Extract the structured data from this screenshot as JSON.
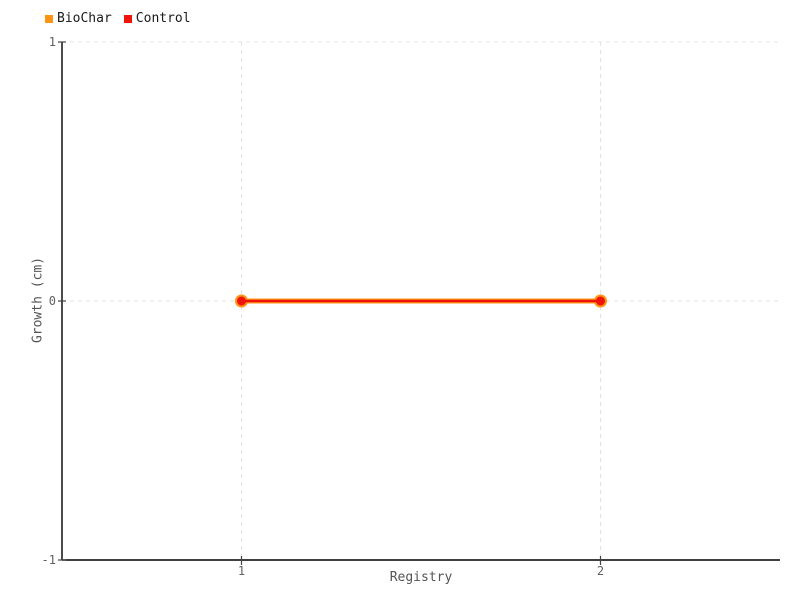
{
  "chart_data": {
    "type": "line",
    "title": "",
    "xlabel": "Registry",
    "ylabel": "Growth (cm)",
    "x": [
      1,
      2
    ],
    "series": [
      {
        "name": "BioChar",
        "color": "#ff9414",
        "values": [
          0,
          0
        ]
      },
      {
        "name": "Control",
        "color": "#ee1409",
        "values": [
          0,
          0
        ]
      }
    ],
    "xlim": [
      0.5,
      2.5
    ],
    "ylim": [
      -1,
      1
    ],
    "xticks": [
      1,
      2
    ],
    "yticks": [
      1,
      0,
      -1
    ],
    "grid": "dashed",
    "legend_position": "top-left",
    "colors": {
      "gridline": "#e3e3e3",
      "axis": "#000000",
      "tick": "#444444",
      "tick_label": "#606060"
    }
  }
}
